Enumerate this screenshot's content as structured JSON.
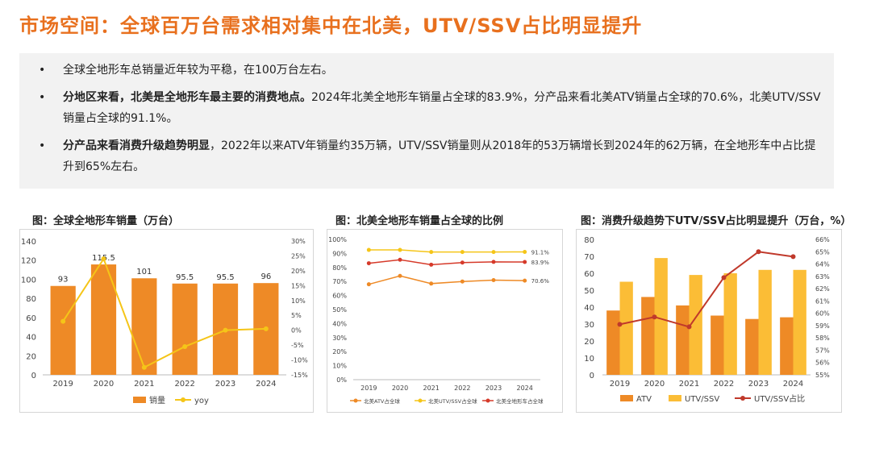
{
  "title": "市场空间：全球百万台需求相对集中在北美，UTV/SSV占比明显提升",
  "bullets": [
    {
      "bold": "",
      "text": "全球全地形车总销量近年较为平稳，在100万台左右。"
    },
    {
      "bold": "分地区来看，北美是全地形车最主要的消费地点。",
      "text": "2024年北美全地形车销量占全球的83.9%，分产品来看北美ATV销量占全球的70.6%，北美UTV/SSV销量占全球的91.1%。"
    },
    {
      "bold": "分产品来看消费升级趋势明显",
      "text": "，2022年以来ATV年销量约35万辆，UTV/SSV销量则从2018年的53万辆增长到2024年的62万辆，在全地形车中占比提升到65%左右。"
    }
  ],
  "chart_data": [
    {
      "type": "bar",
      "title": "图：全球全地形车销量（万台）",
      "categories": [
        "2019",
        "2020",
        "2021",
        "2022",
        "2023",
        "2024"
      ],
      "series": [
        {
          "name": "销量",
          "type": "bar",
          "values": [
            93,
            115.5,
            101,
            95.5,
            95.5,
            96
          ],
          "data_labels": [
            "93",
            "115.5",
            "101",
            "95.5",
            "95.5",
            "96"
          ],
          "color": "#ee8a26"
        },
        {
          "name": "yoy",
          "type": "line",
          "axis": "right",
          "values": [
            3,
            24,
            -12.5,
            -5.5,
            0,
            0.5
          ],
          "color": "#f5c518"
        }
      ],
      "ylim": [
        0,
        140
      ],
      "yticks": [
        "0",
        "20",
        "40",
        "60",
        "80",
        "100",
        "120",
        "140"
      ],
      "y2lim": [
        -15,
        30
      ],
      "y2ticks": [
        "-15%",
        "-10%",
        "-5%",
        "0%",
        "5%",
        "10%",
        "15%",
        "20%",
        "25%",
        "30%"
      ],
      "legend": "bottom"
    },
    {
      "type": "line",
      "title": "图：北美全地形车销量占全球的比例",
      "categories": [
        "2019",
        "2020",
        "2021",
        "2022",
        "2023",
        "2024"
      ],
      "series": [
        {
          "name": "北美ATV占全球",
          "values": [
            68,
            74,
            68.5,
            70,
            71,
            70.6
          ],
          "color": "#ee8a26"
        },
        {
          "name": "北美UTV/SSV占全球",
          "values": [
            92.5,
            92.5,
            91,
            91,
            91,
            91.1
          ],
          "color": "#f5c518"
        },
        {
          "name": "北美全地形车占全球",
          "values": [
            83,
            85.5,
            82,
            83.5,
            84,
            83.9
          ],
          "color": "#d63a2a"
        }
      ],
      "end_labels": [
        "70.6%",
        "91.1%",
        "83.9%"
      ],
      "ylim": [
        0,
        100
      ],
      "yticks": [
        "0%",
        "10%",
        "20%",
        "30%",
        "40%",
        "50%",
        "60%",
        "70%",
        "80%",
        "90%",
        "100%"
      ],
      "legend": "bottom"
    },
    {
      "type": "bar",
      "title": "图：消费升级趋势下UTV/SSV占比明显提升（万台，%）",
      "categories": [
        "2019",
        "2020",
        "2021",
        "2022",
        "2023",
        "2024"
      ],
      "series": [
        {
          "name": "ATV",
          "type": "bar",
          "values": [
            38,
            46,
            41,
            35,
            33,
            34
          ],
          "color": "#ee8a26"
        },
        {
          "name": "UTV/SSV",
          "type": "bar",
          "values": [
            55,
            69,
            59,
            60,
            62,
            62
          ],
          "color": "#fbbd36"
        },
        {
          "name": "UTV/SSV占比",
          "type": "line",
          "axis": "right",
          "values": [
            59.1,
            59.7,
            58.9,
            62.9,
            65,
            64.6
          ],
          "color": "#c0392b"
        }
      ],
      "ylim": [
        0,
        80
      ],
      "yticks": [
        "0",
        "10",
        "20",
        "30",
        "40",
        "50",
        "60",
        "70",
        "80"
      ],
      "y2lim": [
        55,
        66
      ],
      "y2ticks": [
        "55%",
        "56%",
        "57%",
        "58%",
        "59%",
        "60%",
        "61%",
        "62%",
        "63%",
        "64%",
        "65%",
        "66%"
      ],
      "legend": "bottom"
    }
  ]
}
